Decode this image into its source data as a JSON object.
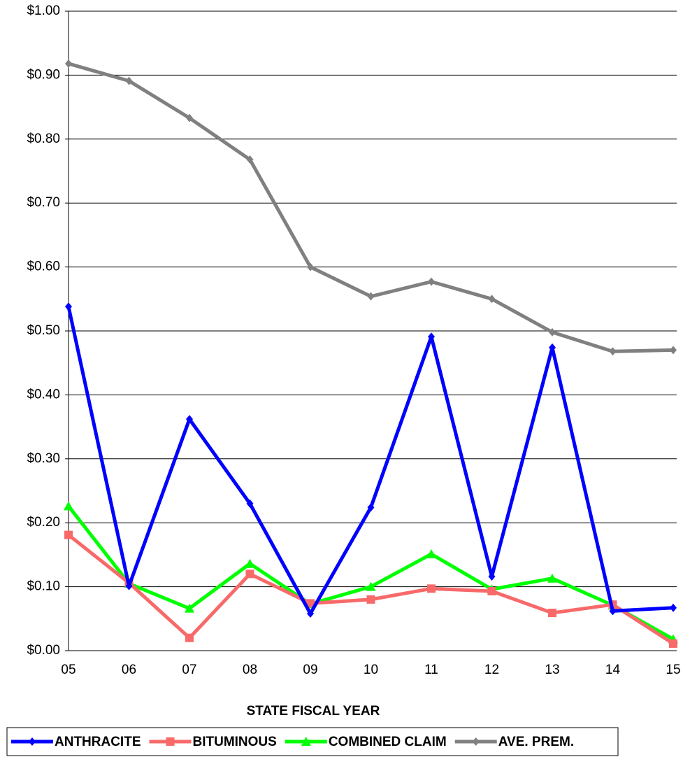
{
  "chart_data": {
    "type": "line",
    "x_label": "STATE FISCAL YEAR",
    "categories": [
      "05",
      "06",
      "07",
      "08",
      "09",
      "10",
      "11",
      "12",
      "13",
      "14",
      "15"
    ],
    "series": [
      {
        "name": "ANTHRACITE",
        "color": "#0000ff",
        "marker": "diamond",
        "values": [
          0.538,
          0.101,
          0.362,
          0.23,
          0.058,
          0.224,
          0.491,
          0.116,
          0.474,
          0.062,
          0.067
        ]
      },
      {
        "name": "BITUMINOUS",
        "color": "#f86a6a",
        "marker": "square",
        "values": [
          0.181,
          0.106,
          0.02,
          0.12,
          0.074,
          0.08,
          0.097,
          0.093,
          0.059,
          0.072,
          0.011
        ]
      },
      {
        "name": "COMBINED CLAIM",
        "color": "#00ff00",
        "marker": "triangle",
        "values": [
          0.226,
          0.105,
          0.066,
          0.136,
          0.073,
          0.1,
          0.151,
          0.096,
          0.113,
          0.071,
          0.018
        ]
      },
      {
        "name": "AVE. PREM.",
        "color": "#808080",
        "marker": "diamond",
        "values": [
          0.918,
          0.891,
          0.833,
          0.768,
          0.6,
          0.554,
          0.577,
          0.55,
          0.498,
          0.468,
          0.47
        ]
      }
    ],
    "ylim": [
      0,
      1
    ],
    "yticks": [
      {
        "value": 0,
        "label": "$0.00"
      },
      {
        "value": 0.1,
        "label": "$0.10"
      },
      {
        "value": 0.2,
        "label": "$0.20"
      },
      {
        "value": 0.3,
        "label": "$0.30"
      },
      {
        "value": 0.4,
        "label": "$0.40"
      },
      {
        "value": 0.5,
        "label": "$0.50"
      },
      {
        "value": 0.6,
        "label": "$0.60"
      },
      {
        "value": 0.7,
        "label": "$0.70"
      },
      {
        "value": 0.8,
        "label": "$0.80"
      },
      {
        "value": 0.9,
        "label": "$0.90"
      },
      {
        "value": 1,
        "label": "$1.00"
      }
    ],
    "grid": true,
    "legend": "bottom"
  }
}
